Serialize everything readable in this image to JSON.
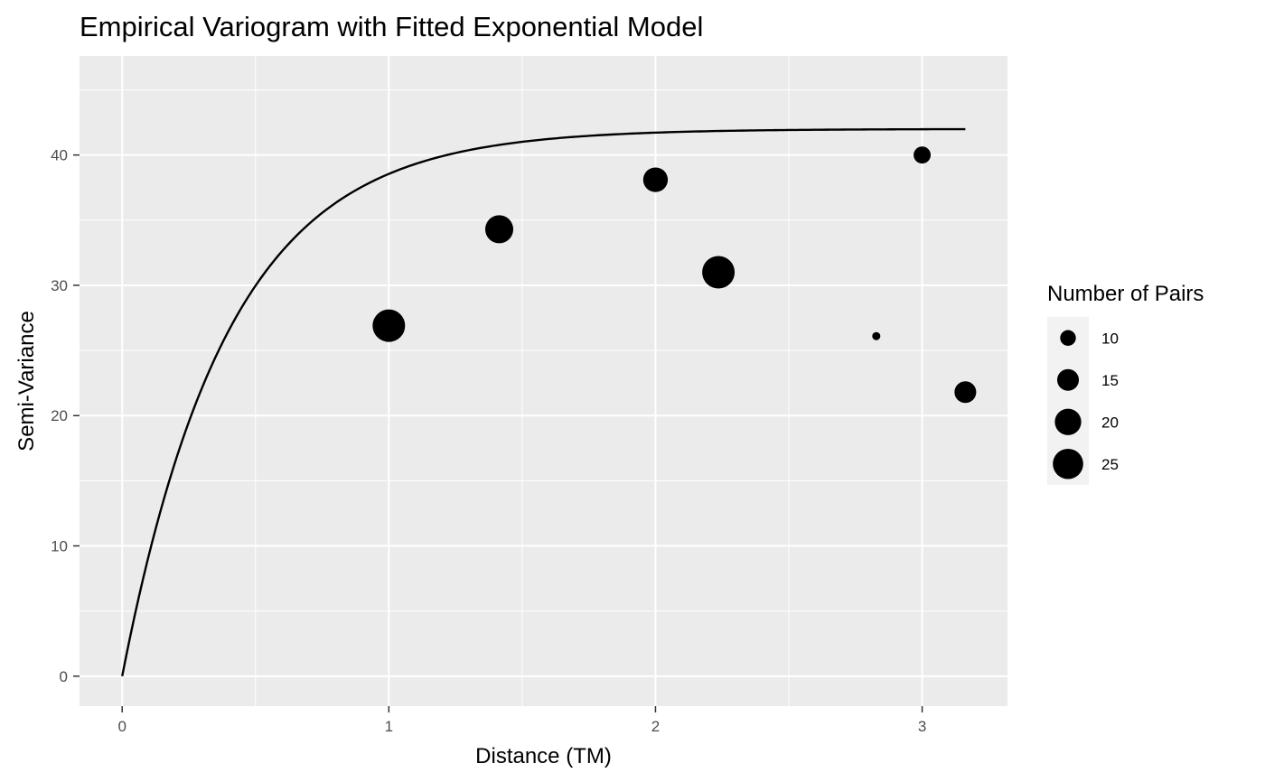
{
  "chart_data": {
    "type": "scatter",
    "title": "Empirical Variogram with Fitted Exponential Model",
    "xlabel": "Distance (TM)",
    "ylabel": "Semi-Variance",
    "xlim": [
      -0.16,
      3.32
    ],
    "ylim": [
      -2.3,
      47.6
    ],
    "x_ticks": [
      0,
      1,
      2,
      3
    ],
    "x_tick_labels": [
      "0",
      "1",
      "2",
      "3"
    ],
    "y_ticks": [
      0,
      10,
      20,
      30,
      40
    ],
    "y_tick_labels": [
      "0",
      "10",
      "20",
      "30",
      "40"
    ],
    "grid": true,
    "legend_position": "right",
    "series": [
      {
        "kind": "points",
        "size_variable": "Number of Pairs",
        "x": [
          1.0,
          1.414,
          2.0,
          2.236,
          2.828,
          3.0,
          3.162
        ],
        "y": [
          26.9,
          34.3,
          38.1,
          31.0,
          26.1,
          40.0,
          21.8
        ],
        "size": [
          28,
          22,
          18,
          28,
          6,
          11,
          15
        ]
      },
      {
        "kind": "line",
        "model": "exponential",
        "nugget": 0,
        "sill": 42.0,
        "range": 0.4,
        "x_start": 0,
        "x_end": 3.162
      }
    ],
    "legend": {
      "title": "Number of Pairs",
      "entries": [
        {
          "label": "10",
          "value": 10
        },
        {
          "label": "15",
          "value": 15
        },
        {
          "label": "20",
          "value": 20
        },
        {
          "label": "25",
          "value": 25
        }
      ]
    },
    "colors": {
      "panel_background": "#ebebeb",
      "grid": "#ffffff",
      "points": "#000000",
      "line": "#000000",
      "text": "#000000",
      "tick_text": "#4d4d4d",
      "legend_key_background": "#f2f2f2"
    }
  }
}
